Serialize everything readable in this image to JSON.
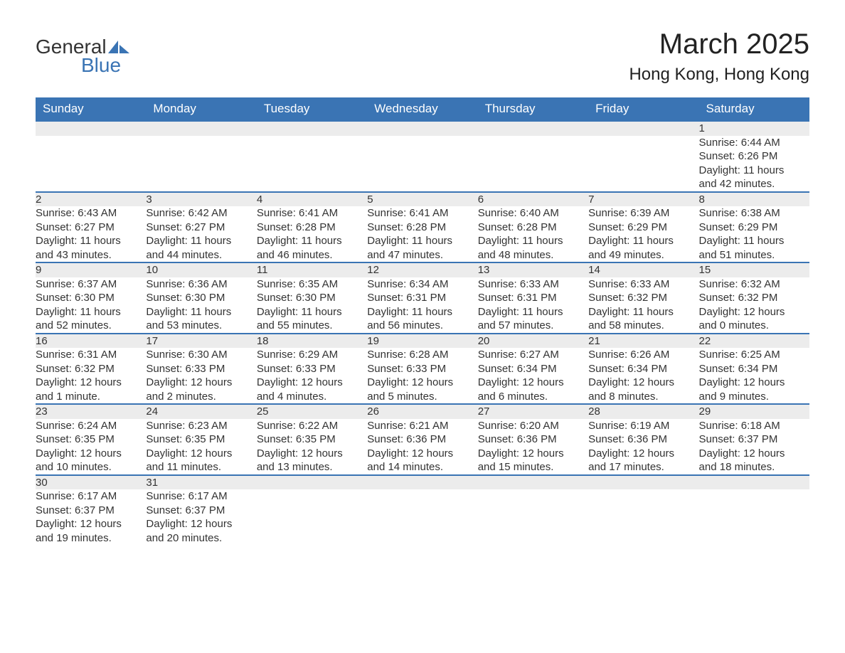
{
  "logo": {
    "word1": "General",
    "word2": "Blue",
    "icon_color": "#3a74b4"
  },
  "title": "March 2025",
  "location": "Hong Kong, Hong Kong",
  "colors": {
    "header_bg": "#3a74b4",
    "header_text": "#ffffff",
    "daynum_bg": "#ececec",
    "text": "#333333",
    "row_border": "#3a74b4"
  },
  "fonts": {
    "title_pt": 40,
    "location_pt": 24,
    "header_pt": 17,
    "body_pt": 15
  },
  "columns": [
    "Sunday",
    "Monday",
    "Tuesday",
    "Wednesday",
    "Thursday",
    "Friday",
    "Saturday"
  ],
  "weeks": [
    [
      null,
      null,
      null,
      null,
      null,
      null,
      {
        "n": "1",
        "sunrise": "Sunrise: 6:44 AM",
        "sunset": "Sunset: 6:26 PM",
        "d1": "Daylight: 11 hours",
        "d2": "and 42 minutes."
      }
    ],
    [
      {
        "n": "2",
        "sunrise": "Sunrise: 6:43 AM",
        "sunset": "Sunset: 6:27 PM",
        "d1": "Daylight: 11 hours",
        "d2": "and 43 minutes."
      },
      {
        "n": "3",
        "sunrise": "Sunrise: 6:42 AM",
        "sunset": "Sunset: 6:27 PM",
        "d1": "Daylight: 11 hours",
        "d2": "and 44 minutes."
      },
      {
        "n": "4",
        "sunrise": "Sunrise: 6:41 AM",
        "sunset": "Sunset: 6:28 PM",
        "d1": "Daylight: 11 hours",
        "d2": "and 46 minutes."
      },
      {
        "n": "5",
        "sunrise": "Sunrise: 6:41 AM",
        "sunset": "Sunset: 6:28 PM",
        "d1": "Daylight: 11 hours",
        "d2": "and 47 minutes."
      },
      {
        "n": "6",
        "sunrise": "Sunrise: 6:40 AM",
        "sunset": "Sunset: 6:28 PM",
        "d1": "Daylight: 11 hours",
        "d2": "and 48 minutes."
      },
      {
        "n": "7",
        "sunrise": "Sunrise: 6:39 AM",
        "sunset": "Sunset: 6:29 PM",
        "d1": "Daylight: 11 hours",
        "d2": "and 49 minutes."
      },
      {
        "n": "8",
        "sunrise": "Sunrise: 6:38 AM",
        "sunset": "Sunset: 6:29 PM",
        "d1": "Daylight: 11 hours",
        "d2": "and 51 minutes."
      }
    ],
    [
      {
        "n": "9",
        "sunrise": "Sunrise: 6:37 AM",
        "sunset": "Sunset: 6:30 PM",
        "d1": "Daylight: 11 hours",
        "d2": "and 52 minutes."
      },
      {
        "n": "10",
        "sunrise": "Sunrise: 6:36 AM",
        "sunset": "Sunset: 6:30 PM",
        "d1": "Daylight: 11 hours",
        "d2": "and 53 minutes."
      },
      {
        "n": "11",
        "sunrise": "Sunrise: 6:35 AM",
        "sunset": "Sunset: 6:30 PM",
        "d1": "Daylight: 11 hours",
        "d2": "and 55 minutes."
      },
      {
        "n": "12",
        "sunrise": "Sunrise: 6:34 AM",
        "sunset": "Sunset: 6:31 PM",
        "d1": "Daylight: 11 hours",
        "d2": "and 56 minutes."
      },
      {
        "n": "13",
        "sunrise": "Sunrise: 6:33 AM",
        "sunset": "Sunset: 6:31 PM",
        "d1": "Daylight: 11 hours",
        "d2": "and 57 minutes."
      },
      {
        "n": "14",
        "sunrise": "Sunrise: 6:33 AM",
        "sunset": "Sunset: 6:32 PM",
        "d1": "Daylight: 11 hours",
        "d2": "and 58 minutes."
      },
      {
        "n": "15",
        "sunrise": "Sunrise: 6:32 AM",
        "sunset": "Sunset: 6:32 PM",
        "d1": "Daylight: 12 hours",
        "d2": "and 0 minutes."
      }
    ],
    [
      {
        "n": "16",
        "sunrise": "Sunrise: 6:31 AM",
        "sunset": "Sunset: 6:32 PM",
        "d1": "Daylight: 12 hours",
        "d2": "and 1 minute."
      },
      {
        "n": "17",
        "sunrise": "Sunrise: 6:30 AM",
        "sunset": "Sunset: 6:33 PM",
        "d1": "Daylight: 12 hours",
        "d2": "and 2 minutes."
      },
      {
        "n": "18",
        "sunrise": "Sunrise: 6:29 AM",
        "sunset": "Sunset: 6:33 PM",
        "d1": "Daylight: 12 hours",
        "d2": "and 4 minutes."
      },
      {
        "n": "19",
        "sunrise": "Sunrise: 6:28 AM",
        "sunset": "Sunset: 6:33 PM",
        "d1": "Daylight: 12 hours",
        "d2": "and 5 minutes."
      },
      {
        "n": "20",
        "sunrise": "Sunrise: 6:27 AM",
        "sunset": "Sunset: 6:34 PM",
        "d1": "Daylight: 12 hours",
        "d2": "and 6 minutes."
      },
      {
        "n": "21",
        "sunrise": "Sunrise: 6:26 AM",
        "sunset": "Sunset: 6:34 PM",
        "d1": "Daylight: 12 hours",
        "d2": "and 8 minutes."
      },
      {
        "n": "22",
        "sunrise": "Sunrise: 6:25 AM",
        "sunset": "Sunset: 6:34 PM",
        "d1": "Daylight: 12 hours",
        "d2": "and 9 minutes."
      }
    ],
    [
      {
        "n": "23",
        "sunrise": "Sunrise: 6:24 AM",
        "sunset": "Sunset: 6:35 PM",
        "d1": "Daylight: 12 hours",
        "d2": "and 10 minutes."
      },
      {
        "n": "24",
        "sunrise": "Sunrise: 6:23 AM",
        "sunset": "Sunset: 6:35 PM",
        "d1": "Daylight: 12 hours",
        "d2": "and 11 minutes."
      },
      {
        "n": "25",
        "sunrise": "Sunrise: 6:22 AM",
        "sunset": "Sunset: 6:35 PM",
        "d1": "Daylight: 12 hours",
        "d2": "and 13 minutes."
      },
      {
        "n": "26",
        "sunrise": "Sunrise: 6:21 AM",
        "sunset": "Sunset: 6:36 PM",
        "d1": "Daylight: 12 hours",
        "d2": "and 14 minutes."
      },
      {
        "n": "27",
        "sunrise": "Sunrise: 6:20 AM",
        "sunset": "Sunset: 6:36 PM",
        "d1": "Daylight: 12 hours",
        "d2": "and 15 minutes."
      },
      {
        "n": "28",
        "sunrise": "Sunrise: 6:19 AM",
        "sunset": "Sunset: 6:36 PM",
        "d1": "Daylight: 12 hours",
        "d2": "and 17 minutes."
      },
      {
        "n": "29",
        "sunrise": "Sunrise: 6:18 AM",
        "sunset": "Sunset: 6:37 PM",
        "d1": "Daylight: 12 hours",
        "d2": "and 18 minutes."
      }
    ],
    [
      {
        "n": "30",
        "sunrise": "Sunrise: 6:17 AM",
        "sunset": "Sunset: 6:37 PM",
        "d1": "Daylight: 12 hours",
        "d2": "and 19 minutes."
      },
      {
        "n": "31",
        "sunrise": "Sunrise: 6:17 AM",
        "sunset": "Sunset: 6:37 PM",
        "d1": "Daylight: 12 hours",
        "d2": "and 20 minutes."
      },
      null,
      null,
      null,
      null,
      null
    ]
  ]
}
